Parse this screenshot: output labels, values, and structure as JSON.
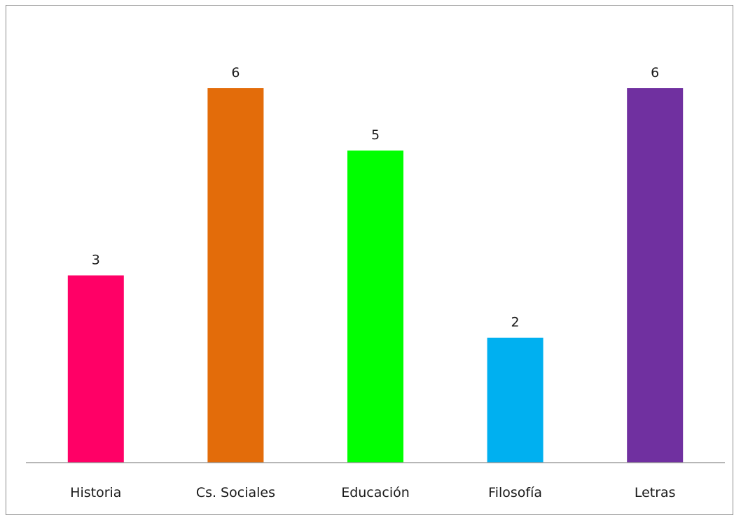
{
  "chart_data": {
    "type": "bar",
    "title": "",
    "xlabel": "",
    "ylabel": "",
    "categories": [
      "Historia",
      "Cs. Sociales",
      "Educación",
      "Filosofía",
      "Letras"
    ],
    "values": [
      3,
      6,
      5,
      2,
      6
    ],
    "data_labels": [
      "3",
      "6",
      "5",
      "2",
      "6"
    ],
    "colors": [
      "#ff0066",
      "#e36c0a",
      "#00ff00",
      "#00b0f0",
      "#7030a0"
    ],
    "ylim": [
      0,
      6
    ],
    "grid": false,
    "legend": "none"
  }
}
